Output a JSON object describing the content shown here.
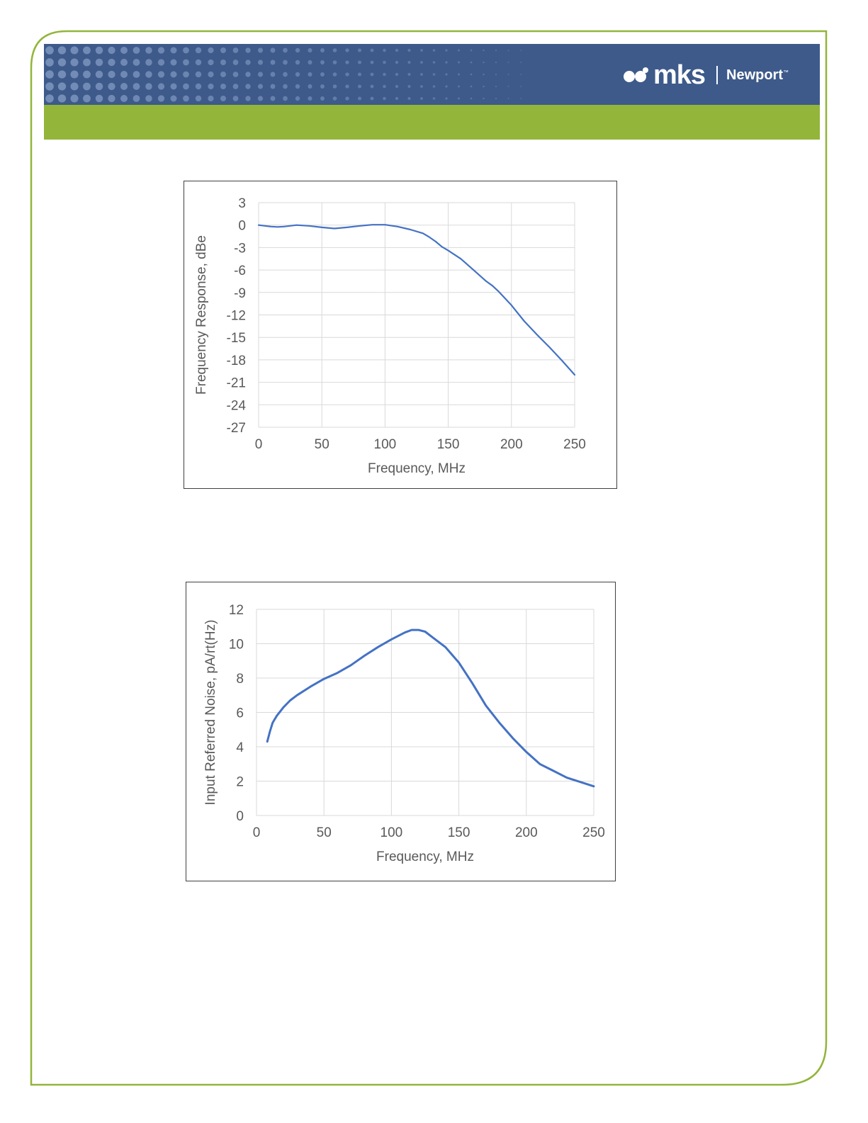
{
  "brand": {
    "logo_mark": "mks",
    "divider": "|",
    "partner": "Newport",
    "trademark": "™",
    "colors": {
      "header_blue": "#3d5a8a",
      "header_green": "#92b53a",
      "frame_green": "#92b53a"
    }
  },
  "chart_data": [
    {
      "type": "line",
      "title": "",
      "xlabel": "Frequency, MHz",
      "ylabel": "Frequency Response, dBe",
      "xlim": [
        0,
        250
      ],
      "ylim": [
        -27,
        3
      ],
      "xticks": [
        "0",
        "50",
        "100",
        "150",
        "200",
        "250"
      ],
      "yticks": [
        "3",
        "0",
        "-3",
        "-6",
        "-9",
        "-12",
        "-15",
        "-18",
        "-21",
        "-24",
        "-27"
      ],
      "grid": true,
      "legend": "none",
      "line_color": "#4472c4",
      "series": [
        {
          "x": [
            0,
            10,
            15,
            20,
            30,
            40,
            50,
            60,
            70,
            80,
            90,
            100,
            110,
            120,
            130,
            135,
            140,
            145,
            150,
            160,
            170,
            180,
            185,
            190,
            200,
            210,
            220,
            230,
            240,
            250
          ],
          "values": [
            0,
            -0.2,
            -0.25,
            -0.2,
            0,
            -0.1,
            -0.3,
            -0.45,
            -0.3,
            -0.1,
            0.05,
            0.05,
            -0.2,
            -0.6,
            -1.1,
            -1.6,
            -2.2,
            -2.9,
            -3.4,
            -4.5,
            -6.0,
            -7.5,
            -8.1,
            -8.9,
            -10.7,
            -12.8,
            -14.6,
            -16.3,
            -18.1,
            -20.0
          ]
        }
      ]
    },
    {
      "type": "line",
      "title": "",
      "xlabel": "Frequency, MHz",
      "ylabel": "Input Referred Noise, pA/rt(Hz)",
      "xlim": [
        0,
        250
      ],
      "ylim": [
        0,
        12
      ],
      "xticks": [
        "0",
        "50",
        "100",
        "150",
        "200",
        "250"
      ],
      "yticks": [
        "0",
        "2",
        "4",
        "6",
        "8",
        "10",
        "12"
      ],
      "grid": true,
      "legend": "none",
      "line_color": "#4472c4",
      "series": [
        {
          "x": [
            8,
            10,
            12,
            15,
            20,
            25,
            30,
            40,
            50,
            60,
            70,
            80,
            90,
            100,
            110,
            115,
            120,
            125,
            130,
            140,
            150,
            160,
            170,
            180,
            190,
            200,
            210,
            220,
            230,
            240,
            250
          ],
          "values": [
            4.3,
            4.9,
            5.4,
            5.8,
            6.3,
            6.7,
            7.0,
            7.5,
            7.95,
            8.3,
            8.75,
            9.3,
            9.8,
            10.25,
            10.65,
            10.8,
            10.8,
            10.7,
            10.4,
            9.8,
            8.9,
            7.7,
            6.4,
            5.4,
            4.5,
            3.7,
            3.0,
            2.6,
            2.2,
            1.95,
            1.7
          ]
        }
      ]
    }
  ]
}
